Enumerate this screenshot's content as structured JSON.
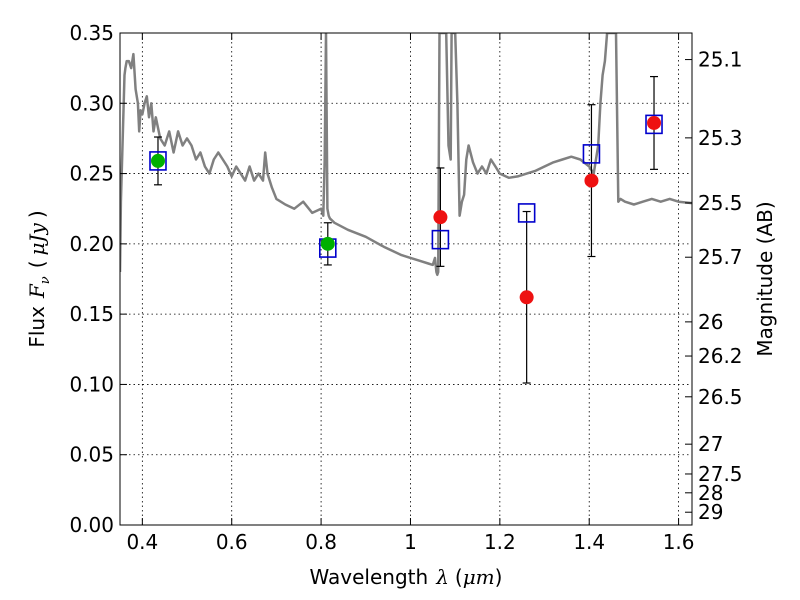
{
  "chart_data": {
    "type": "scatter",
    "xlabel": "Wavelength",
    "xlabel_symbol": "λ",
    "xlabel_unit": "μm",
    "ylabel": "Flux",
    "ylabel_symbol": "F",
    "ylabel_subscript": "ν",
    "ylabel_unit": "μJy",
    "y2label": "Magnitude (AB)",
    "xlim": [
      0.35,
      1.63
    ],
    "ylim": [
      0.0,
      0.35
    ],
    "grid": true,
    "x_ticks": [
      0.4,
      0.6,
      0.8,
      1.0,
      1.2,
      1.4,
      1.6
    ],
    "x_tick_labels": [
      "0.4",
      "0.6",
      "0.8",
      "1",
      "1.2",
      "1.4",
      "1.6"
    ],
    "y_ticks": [
      0.0,
      0.05,
      0.1,
      0.15,
      0.2,
      0.25,
      0.3,
      0.35
    ],
    "y_tick_labels": [
      "0.00",
      "0.05",
      "0.10",
      "0.15",
      "0.20",
      "0.25",
      "0.30",
      "0.35"
    ],
    "y2_ticks": [
      {
        "label": "25.1",
        "flux": 0.3311
      },
      {
        "label": "25.3",
        "flux": 0.2754
      },
      {
        "label": "25.5",
        "flux": 0.2291
      },
      {
        "label": "25.7",
        "flux": 0.1905
      },
      {
        "label": "26",
        "flux": 0.1445
      },
      {
        "label": "26.2",
        "flux": 0.1202
      },
      {
        "label": "26.5",
        "flux": 0.0912
      },
      {
        "label": "27",
        "flux": 0.0575
      },
      {
        "label": "27.5",
        "flux": 0.0363
      },
      {
        "label": "28",
        "flux": 0.0229
      },
      {
        "label": "29",
        "flux": 0.0091
      }
    ],
    "colors": {
      "model_line": "#808080",
      "green_points": "#00b000",
      "red_points": "#ee1111",
      "model_boxes": "#0000cc",
      "grid": "#000000"
    },
    "series": [
      {
        "style": "line",
        "color": "#808080",
        "x": [
          0.35,
          0.352,
          0.36,
          0.362,
          0.365,
          0.37,
          0.375,
          0.38,
          0.385,
          0.39,
          0.393,
          0.396,
          0.4,
          0.405,
          0.41,
          0.415,
          0.42,
          0.425,
          0.43,
          0.44,
          0.45,
          0.46,
          0.47,
          0.48,
          0.49,
          0.5,
          0.51,
          0.52,
          0.53,
          0.54,
          0.55,
          0.56,
          0.57,
          0.58,
          0.59,
          0.6,
          0.61,
          0.62,
          0.63,
          0.64,
          0.65,
          0.66,
          0.67,
          0.675,
          0.68,
          0.685,
          0.69,
          0.7,
          0.72,
          0.74,
          0.76,
          0.78,
          0.8,
          0.805,
          0.808,
          0.811,
          0.814,
          0.817,
          0.82,
          0.83,
          0.86,
          0.9,
          0.94,
          0.98,
          1.0,
          1.02,
          1.04,
          1.05,
          1.055,
          1.058,
          1.06,
          1.062,
          1.065,
          1.07,
          1.075,
          1.08,
          1.085,
          1.09,
          1.092,
          1.094,
          1.096,
          1.098,
          1.1,
          1.105,
          1.11,
          1.115,
          1.12,
          1.125,
          1.13,
          1.14,
          1.15,
          1.16,
          1.17,
          1.18,
          1.19,
          1.2,
          1.22,
          1.24,
          1.26,
          1.28,
          1.3,
          1.32,
          1.34,
          1.36,
          1.38,
          1.4,
          1.41,
          1.42,
          1.425,
          1.43,
          1.435,
          1.44,
          1.445,
          1.45,
          1.455,
          1.46,
          1.465,
          1.47,
          1.48,
          1.5,
          1.52,
          1.54,
          1.56,
          1.58,
          1.6,
          1.63
        ],
        "y": [
          0.18,
          0.23,
          0.32,
          0.325,
          0.33,
          0.33,
          0.325,
          0.335,
          0.31,
          0.3,
          0.28,
          0.295,
          0.292,
          0.3,
          0.305,
          0.29,
          0.3,
          0.28,
          0.29,
          0.275,
          0.27,
          0.28,
          0.265,
          0.28,
          0.27,
          0.275,
          0.27,
          0.26,
          0.265,
          0.255,
          0.25,
          0.26,
          0.265,
          0.26,
          0.255,
          0.248,
          0.255,
          0.25,
          0.245,
          0.255,
          0.245,
          0.25,
          0.245,
          0.265,
          0.25,
          0.245,
          0.24,
          0.232,
          0.228,
          0.225,
          0.23,
          0.222,
          0.225,
          0.22,
          0.26,
          0.35,
          0.225,
          0.22,
          0.218,
          0.215,
          0.21,
          0.205,
          0.198,
          0.192,
          0.19,
          0.188,
          0.186,
          0.185,
          0.19,
          0.18,
          0.178,
          0.18,
          0.35,
          0.35,
          0.35,
          0.35,
          0.27,
          0.26,
          0.35,
          0.35,
          0.35,
          0.35,
          0.35,
          0.3,
          0.22,
          0.23,
          0.235,
          0.26,
          0.27,
          0.258,
          0.25,
          0.255,
          0.25,
          0.26,
          0.255,
          0.25,
          0.247,
          0.248,
          0.25,
          0.252,
          0.255,
          0.258,
          0.26,
          0.262,
          0.26,
          0.255,
          0.25,
          0.27,
          0.3,
          0.32,
          0.33,
          0.35,
          0.35,
          0.35,
          0.35,
          0.35,
          0.23,
          0.232,
          0.23,
          0.228,
          0.23,
          0.232,
          0.23,
          0.232,
          0.23,
          0.229
        ]
      },
      {
        "style": "markers",
        "marker": "circle",
        "color": "#00b000",
        "x": [
          0.435,
          0.815
        ],
        "y": [
          0.259,
          0.2
        ],
        "err": [
          0.017,
          0.015
        ]
      },
      {
        "style": "markers",
        "marker": "circle",
        "color": "#ee1111",
        "x": [
          1.067,
          1.26,
          1.405,
          1.545
        ],
        "y": [
          0.219,
          0.162,
          0.245,
          0.286
        ],
        "err": [
          0.035,
          0.061,
          0.054,
          0.033
        ]
      },
      {
        "style": "markers",
        "marker": "square-open",
        "color": "#0000cc",
        "x": [
          0.435,
          0.815,
          1.067,
          1.26,
          1.405,
          1.545
        ],
        "y": [
          0.259,
          0.197,
          0.203,
          0.222,
          0.264,
          0.285
        ]
      }
    ]
  }
}
